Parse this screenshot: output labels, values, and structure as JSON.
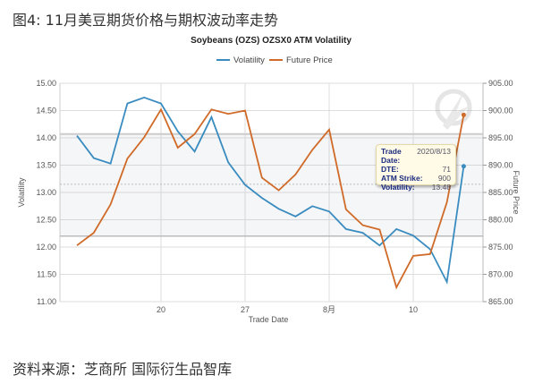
{
  "figure_title": "图4:  11月美豆期货价格与期权波动率走势",
  "source": "资料来源：芝商所 国际衍生品智库",
  "chart_data": {
    "type": "line",
    "title": "Soybeans (OZS) OZSX0 ATM Volatility",
    "xlabel": "Trade Date",
    "ylabel": "Volatility",
    "y2label": "Future Price",
    "legend_position": "top-center",
    "grid": true,
    "x": [
      "2020/7/13",
      "2020/7/14",
      "2020/7/15",
      "2020/7/16",
      "2020/7/17",
      "2020/7/20",
      "2020/7/21",
      "2020/7/22",
      "2020/7/23",
      "2020/7/24",
      "2020/7/27",
      "2020/7/28",
      "2020/7/29",
      "2020/7/30",
      "2020/7/31",
      "2020/8/3",
      "2020/8/4",
      "2020/8/5",
      "2020/8/6",
      "2020/8/7",
      "2020/8/10",
      "2020/8/11",
      "2020/8/12",
      "2020/8/13"
    ],
    "x_ticks": [
      {
        "label": "20",
        "at": "2020/7/20"
      },
      {
        "label": "27",
        "at": "2020/7/27"
      },
      {
        "label": "8月",
        "at": "2020/8/3"
      },
      {
        "label": "10",
        "at": "2020/8/10"
      }
    ],
    "ylim": [
      11,
      15
    ],
    "y_ticks": [
      "15.00",
      "14.50",
      "14.00",
      "13.50",
      "13.00",
      "12.50",
      "12.00",
      "11.50",
      "11.00"
    ],
    "y2lim": [
      865,
      905
    ],
    "y2_ticks": [
      "905.00",
      "900.00",
      "895.00",
      "890.00",
      "885.00",
      "880.00",
      "875.00",
      "870.00",
      "865.00"
    ],
    "band": {
      "upper": 14.07,
      "lower": 12.2,
      "mid": 13.15
    },
    "series": [
      {
        "name": "Volatility",
        "axis": "left",
        "color": "#3a8cc0",
        "values": [
          14.04,
          13.63,
          13.53,
          14.63,
          14.74,
          14.63,
          14.12,
          13.75,
          14.38,
          13.55,
          13.14,
          12.9,
          12.7,
          12.56,
          12.75,
          12.65,
          12.33,
          12.26,
          12.03,
          12.33,
          12.21,
          11.96,
          11.36,
          13.48
        ]
      },
      {
        "name": "Future Price",
        "axis": "right",
        "color": "#d06a28",
        "values": [
          875.3,
          877.6,
          882.8,
          891.2,
          895.1,
          900.2,
          893.2,
          895.7,
          900.2,
          899.4,
          900.0,
          887.7,
          885.4,
          888.3,
          892.8,
          896.5,
          881.9,
          879.0,
          878.2,
          867.6,
          873.4,
          873.7,
          883.2,
          899.2
        ]
      }
    ],
    "tooltip": [
      {
        "key": "Trade Date:",
        "value": "2020/8/13"
      },
      {
        "key": "DTE:",
        "value": "71"
      },
      {
        "key": "ATM Strike:",
        "value": "900"
      },
      {
        "key": "Volatility:",
        "value": "13.48"
      }
    ]
  }
}
